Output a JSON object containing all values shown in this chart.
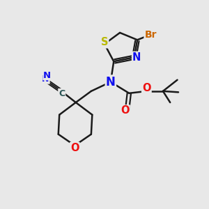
{
  "background_color": "#e8e8e8",
  "bond_color": "#1a1a1a",
  "atom_colors": {
    "N": "#1010ee",
    "O": "#ee1010",
    "S": "#b8b800",
    "Br": "#cc6600",
    "C_teal": "#2a5555"
  },
  "figsize": [
    3.0,
    3.0
  ],
  "dpi": 100
}
